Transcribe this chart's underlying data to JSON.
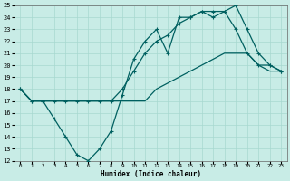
{
  "xlabel": "Humidex (Indice chaleur)",
  "bg_color": "#c8ece6",
  "grid_color": "#a8d8d0",
  "line_color": "#006060",
  "xlim": [
    -0.5,
    23.5
  ],
  "ylim": [
    12,
    25
  ],
  "xticks": [
    0,
    1,
    2,
    3,
    4,
    5,
    6,
    7,
    8,
    9,
    10,
    11,
    12,
    13,
    14,
    15,
    16,
    17,
    18,
    19,
    20,
    21,
    22,
    23
  ],
  "yticks": [
    12,
    13,
    14,
    15,
    16,
    17,
    18,
    19,
    20,
    21,
    22,
    23,
    24,
    25
  ],
  "line1_x": [
    0,
    1,
    2,
    3,
    4,
    5,
    6,
    7,
    8,
    9,
    10,
    11,
    12,
    13,
    14,
    15,
    16,
    17,
    18,
    19,
    20,
    21,
    22,
    23
  ],
  "line1_y": [
    18,
    17,
    17,
    17,
    17,
    17,
    17,
    17,
    17,
    17,
    17,
    17,
    18,
    18.5,
    19,
    19.5,
    20,
    20.5,
    21,
    21,
    21,
    20,
    19.5,
    19.5
  ],
  "line2_x": [
    0,
    1,
    2,
    3,
    4,
    5,
    6,
    7,
    8,
    9,
    10,
    11,
    12,
    13,
    14,
    15,
    16,
    17,
    18,
    19,
    20,
    21,
    22,
    23
  ],
  "line2_y": [
    18,
    17,
    17,
    15.5,
    14,
    12.5,
    12,
    13,
    14.5,
    17.5,
    20.5,
    22,
    23,
    21,
    24,
    24,
    24.5,
    24,
    24.5,
    23,
    21,
    20,
    20,
    19.5
  ],
  "line3_x": [
    0,
    1,
    2,
    3,
    4,
    5,
    6,
    7,
    8,
    9,
    10,
    11,
    12,
    13,
    14,
    15,
    16,
    17,
    18,
    19,
    20,
    21,
    22,
    23
  ],
  "line3_y": [
    18,
    17,
    17,
    17,
    17,
    17,
    17,
    17,
    17,
    18,
    19.5,
    21,
    22,
    22.5,
    23.5,
    24,
    24.5,
    24.5,
    24.5,
    25,
    23,
    21,
    20,
    19.5
  ]
}
